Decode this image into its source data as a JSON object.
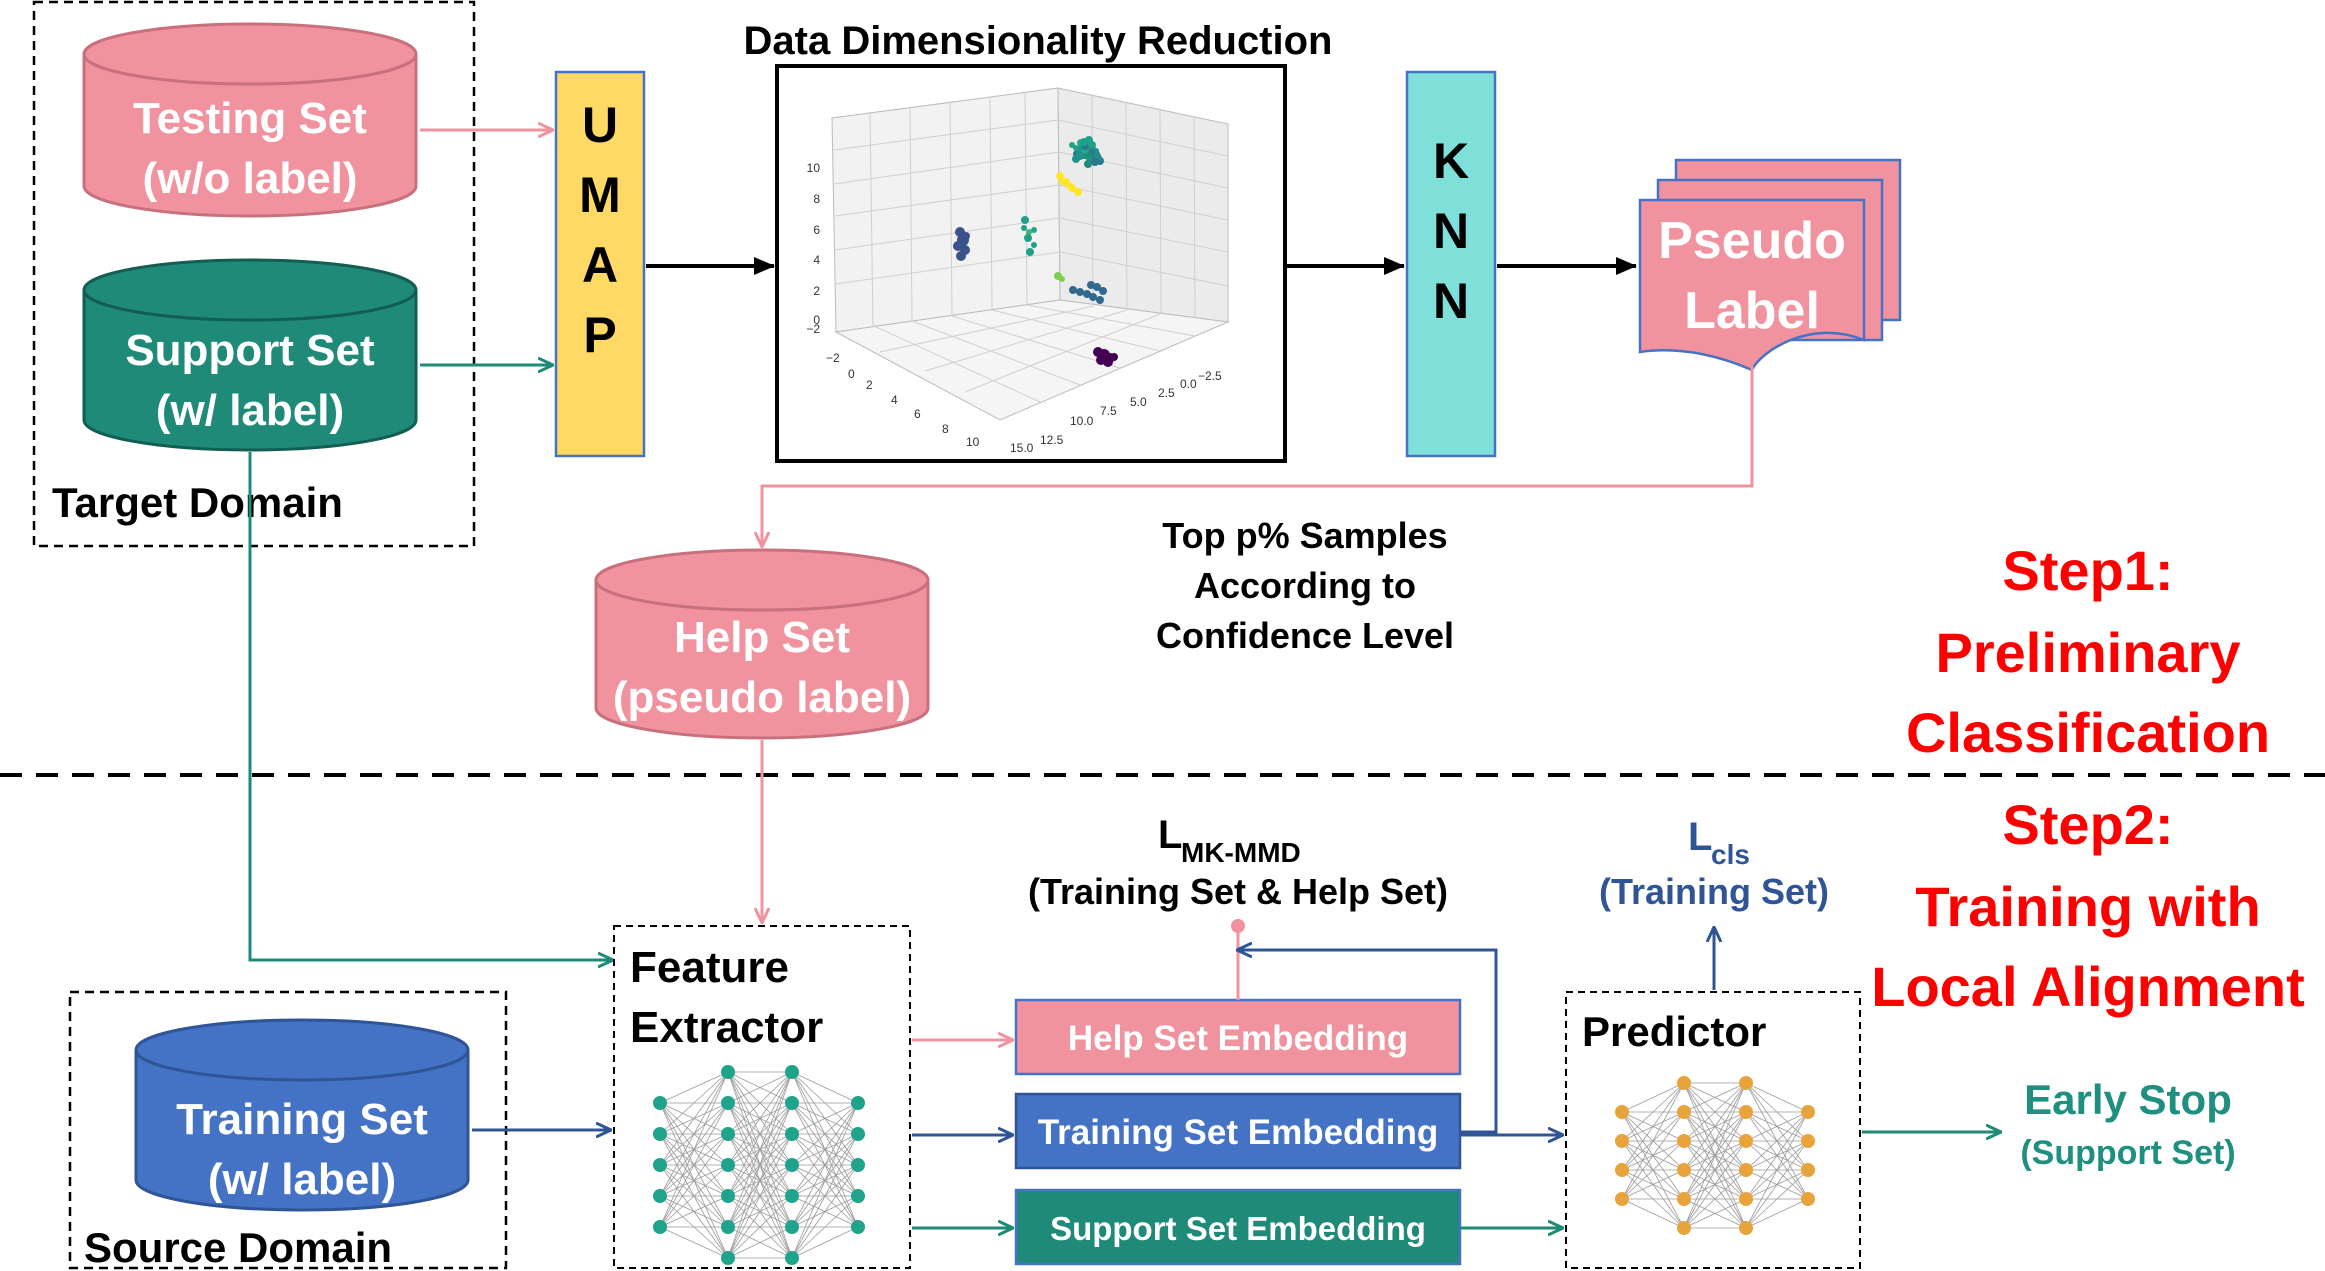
{
  "colors": {
    "pink": "#f0939f",
    "pink_stroke": "#c8707e",
    "teal": "#1f8a78",
    "teal_stroke": "#125e52",
    "blue": "#4472c4",
    "blue_stroke": "#2f5597",
    "yellow": "#ffd966",
    "cyan": "#7fdfd9",
    "red": "#ff0000",
    "teal_text": "#1f9080",
    "blue_text": "#2f5597",
    "node_teal": "#1fa38a",
    "node_orange": "#e8a33a"
  },
  "title": "Data Dimensionality Reduction",
  "target_domain": {
    "label": "Target Domain",
    "testing_set": {
      "line1": "Testing Set",
      "line2": "(w/o label)"
    },
    "support_set": {
      "line1": "Support Set",
      "line2": "(w/ label)"
    }
  },
  "umap": {
    "letters": [
      "U",
      "M",
      "A",
      "P"
    ]
  },
  "knn": {
    "letters": [
      "K",
      "N",
      "N"
    ]
  },
  "pseudo_label": {
    "line1": "Pseudo",
    "line2": "Label"
  },
  "scatter_plot": {
    "y_ticks": [
      "10",
      "8",
      "6",
      "4",
      "2",
      "0",
      "−2"
    ],
    "x_ticks": [
      "−2",
      "0",
      "2",
      "4",
      "6",
      "8",
      "10"
    ],
    "z_ticks": [
      "15.0",
      "12.5",
      "10.0",
      "7.5",
      "5.0",
      "2.5",
      "0.0",
      "−2.5"
    ]
  },
  "top_samples": {
    "line1": "Top p% Samples",
    "line2": "According to",
    "line3": "Confidence Level"
  },
  "help_set": {
    "line1": "Help Set",
    "line2": "(pseudo label)"
  },
  "step1": {
    "line1": "Step1:",
    "line2": "Preliminary",
    "line3": "Classification"
  },
  "step2": {
    "line1": "Step2:",
    "line2": "Training with",
    "line3": "Local Alignment"
  },
  "source_domain": {
    "label": "Source Domain",
    "training_set": {
      "line1": "Training Set",
      "line2": "(w/ label)"
    }
  },
  "feature_extractor": {
    "line1": "Feature",
    "line2": "Extractor"
  },
  "embeddings": {
    "help": "Help Set Embedding",
    "training": "Training Set Embedding",
    "support": "Support Set Embedding"
  },
  "loss_mkmmd": {
    "main": "L",
    "sub": "MK-MMD",
    "desc": "(Training Set & Help Set)"
  },
  "loss_cls": {
    "main": "L",
    "sub": "cls",
    "desc": "(Training Set)"
  },
  "predictor": {
    "label": "Predictor"
  },
  "early_stop": {
    "line1": "Early Stop",
    "line2": "(Support Set)"
  }
}
